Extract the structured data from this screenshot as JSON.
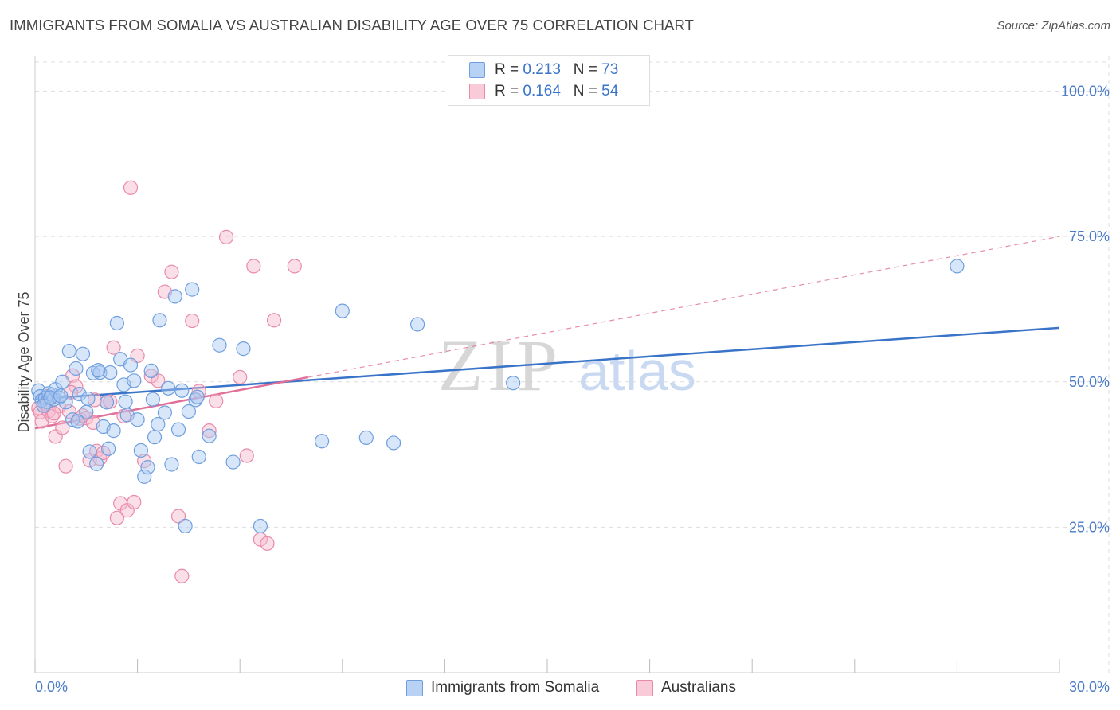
{
  "title": "IMMIGRANTS FROM SOMALIA VS AUSTRALIAN DISABILITY AGE OVER 75 CORRELATION CHART",
  "source": "Source: ZipAtlas.com",
  "watermark": {
    "zip": "ZIP",
    "atlas": "atlas"
  },
  "legend": {
    "rows": [
      {
        "r_label": "R = ",
        "r_value": "0.213",
        "n_label": "N = ",
        "n_value": "73"
      },
      {
        "r_label": "R = ",
        "r_value": "0.164",
        "n_label": "N = ",
        "n_value": "54"
      }
    ]
  },
  "colors": {
    "blue_fill": "#a9c8f2",
    "blue_stroke": "#6f9fde",
    "blue_line": "#3a74c9",
    "pink_fill": "#f6b8cb",
    "pink_stroke": "#e88aa8",
    "pink_line": "#e0709a",
    "tick_text": "#4a7cc9",
    "grid": "#dddddd"
  },
  "chart_data": {
    "type": "scatter",
    "title": "IMMIGRANTS FROM SOMALIA VS AUSTRALIAN DISABILITY AGE OVER 75 CORRELATION CHART",
    "xlabel": "",
    "ylabel": "Disability Age Over 75",
    "xlim": [
      0,
      30
    ],
    "ylim": [
      0,
      105
    ],
    "x_tick_labels": [
      "0.0%",
      "30.0%"
    ],
    "y_tick_labels": [
      "25.0%",
      "50.0%",
      "75.0%",
      "100.0%"
    ],
    "y_ticks": [
      25,
      50,
      75,
      100
    ],
    "grid": true,
    "legend_position": "top-center",
    "series": [
      {
        "name": "Immigrants from Somalia",
        "color": "#a9c8f2",
        "trend": {
          "x": [
            0,
            30
          ],
          "y": [
            47.0,
            59.3
          ],
          "style": "solid"
        },
        "points": [
          [
            0.1,
            48.5
          ],
          [
            0.15,
            47.5
          ],
          [
            0.2,
            46.8
          ],
          [
            0.3,
            47.2
          ],
          [
            0.35,
            46.5
          ],
          [
            0.4,
            48.0
          ],
          [
            0.5,
            47.8
          ],
          [
            0.55,
            47.0
          ],
          [
            0.6,
            48.7
          ],
          [
            0.7,
            47.3
          ],
          [
            0.8,
            50.0
          ],
          [
            0.9,
            46.5
          ],
          [
            1.0,
            55.3
          ],
          [
            1.1,
            43.5
          ],
          [
            1.2,
            52.3
          ],
          [
            1.3,
            47.9
          ],
          [
            1.4,
            54.8
          ],
          [
            1.5,
            44.8
          ],
          [
            1.6,
            38.0
          ],
          [
            1.7,
            51.5
          ],
          [
            1.8,
            35.9
          ],
          [
            1.9,
            51.6
          ],
          [
            2.0,
            42.3
          ],
          [
            2.1,
            46.5
          ],
          [
            2.2,
            51.6
          ],
          [
            2.3,
            41.6
          ],
          [
            2.4,
            60.1
          ],
          [
            2.5,
            53.9
          ],
          [
            2.6,
            49.5
          ],
          [
            2.7,
            44.3
          ],
          [
            2.8,
            52.9
          ],
          [
            2.9,
            50.2
          ],
          [
            3.0,
            43.5
          ],
          [
            3.1,
            38.2
          ],
          [
            3.2,
            33.7
          ],
          [
            3.3,
            35.3
          ],
          [
            3.4,
            51.9
          ],
          [
            3.5,
            40.5
          ],
          [
            3.6,
            42.7
          ],
          [
            3.65,
            60.6
          ],
          [
            3.8,
            44.7
          ],
          [
            3.9,
            48.9
          ],
          [
            4.0,
            35.8
          ],
          [
            4.1,
            64.7
          ],
          [
            4.2,
            41.8
          ],
          [
            4.3,
            48.5
          ],
          [
            4.4,
            25.2
          ],
          [
            4.5,
            44.9
          ],
          [
            4.6,
            65.9
          ],
          [
            4.7,
            46.9
          ],
          [
            4.8,
            37.1
          ],
          [
            5.1,
            40.7
          ],
          [
            5.4,
            56.3
          ],
          [
            5.8,
            36.2
          ],
          [
            6.1,
            55.7
          ],
          [
            6.6,
            25.2
          ],
          [
            8.4,
            39.8
          ],
          [
            9.0,
            62.2
          ],
          [
            9.7,
            40.4
          ],
          [
            10.5,
            39.5
          ],
          [
            11.2,
            59.9
          ],
          [
            14.0,
            49.8
          ],
          [
            27.0,
            69.9
          ],
          [
            0.25,
            45.9
          ],
          [
            0.45,
            47.3
          ],
          [
            1.25,
            43.2
          ],
          [
            2.15,
            38.5
          ],
          [
            3.45,
            47.0
          ],
          [
            4.75,
            47.4
          ],
          [
            1.55,
            47.1
          ],
          [
            2.65,
            46.6
          ],
          [
            0.75,
            47.6
          ],
          [
            1.85,
            52.0
          ]
        ]
      },
      {
        "name": "Australians",
        "color": "#f6b8cb",
        "trend": {
          "x": [
            0,
            8
          ],
          "y": [
            42.0,
            50.8
          ],
          "style": "solid",
          "extended": {
            "x": [
              8,
              30
            ],
            "y": [
              50.8,
              75.0
            ],
            "style": "dashed"
          }
        },
        "points": [
          [
            0.1,
            45.5
          ],
          [
            0.15,
            44.8
          ],
          [
            0.2,
            43.2
          ],
          [
            0.3,
            46.2
          ],
          [
            0.4,
            45.0
          ],
          [
            0.5,
            44.1
          ],
          [
            0.6,
            40.6
          ],
          [
            0.7,
            45.8
          ],
          [
            0.8,
            42.1
          ],
          [
            0.9,
            35.5
          ],
          [
            1.0,
            44.9
          ],
          [
            1.1,
            51.1
          ],
          [
            1.2,
            49.2
          ],
          [
            1.3,
            43.7
          ],
          [
            1.4,
            44.2
          ],
          [
            1.5,
            43.8
          ],
          [
            1.6,
            36.5
          ],
          [
            1.7,
            43.0
          ],
          [
            1.8,
            38.1
          ],
          [
            1.9,
            36.8
          ],
          [
            2.0,
            37.8
          ],
          [
            2.1,
            46.5
          ],
          [
            2.2,
            46.6
          ],
          [
            2.3,
            55.9
          ],
          [
            2.4,
            26.6
          ],
          [
            2.5,
            29.1
          ],
          [
            2.6,
            44.1
          ],
          [
            2.7,
            27.9
          ],
          [
            2.8,
            83.4
          ],
          [
            2.9,
            29.3
          ],
          [
            3.0,
            54.5
          ],
          [
            3.2,
            36.4
          ],
          [
            3.4,
            51.0
          ],
          [
            3.6,
            50.2
          ],
          [
            3.8,
            65.5
          ],
          [
            4.0,
            68.9
          ],
          [
            4.2,
            26.9
          ],
          [
            4.3,
            16.6
          ],
          [
            4.6,
            60.5
          ],
          [
            4.8,
            48.4
          ],
          [
            5.1,
            41.6
          ],
          [
            5.3,
            46.7
          ],
          [
            5.6,
            74.9
          ],
          [
            6.0,
            50.8
          ],
          [
            6.2,
            37.3
          ],
          [
            6.4,
            69.9
          ],
          [
            6.6,
            22.9
          ],
          [
            6.8,
            22.2
          ],
          [
            7.0,
            60.6
          ],
          [
            7.6,
            69.9
          ],
          [
            0.35,
            47.5
          ],
          [
            0.55,
            44.6
          ],
          [
            1.05,
            48.2
          ],
          [
            1.75,
            46.9
          ]
        ]
      }
    ]
  },
  "bottom_legend": [
    {
      "label": "Immigrants from Somalia"
    },
    {
      "label": "Australians"
    }
  ]
}
